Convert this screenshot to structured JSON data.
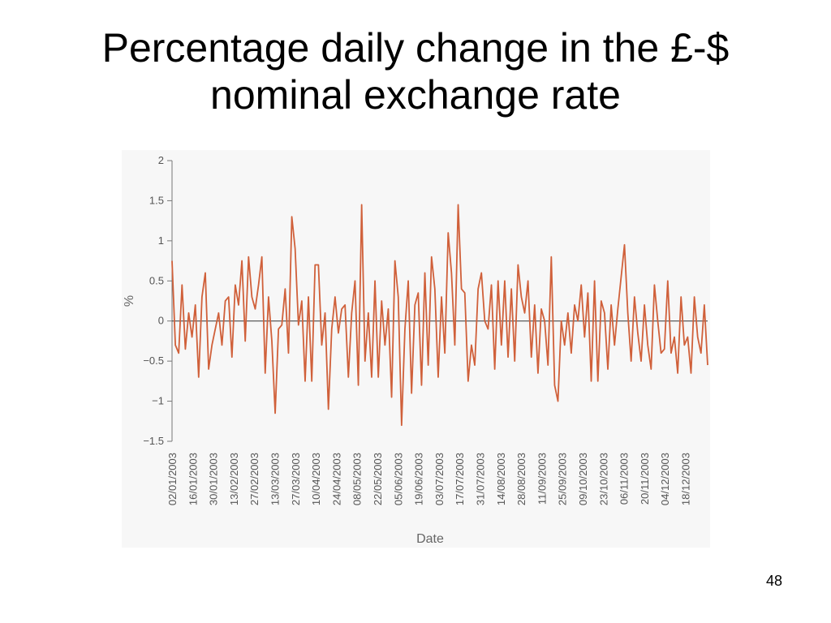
{
  "slide": {
    "title_line1": "Percentage daily change in the £-$",
    "title_line2": "nominal exchange rate",
    "page_number": "48"
  },
  "chart_data": {
    "type": "line",
    "title": "",
    "xlabel": "Date",
    "ylabel": "%",
    "ylim": [
      -1.5,
      2
    ],
    "yticks": [
      2,
      1.5,
      1,
      0.5,
      0,
      -0.5,
      -1,
      -1.5
    ],
    "ytick_labels": [
      "2",
      "1.5",
      "1",
      "0.5",
      "0",
      "−0.5",
      "−1",
      "−1.5"
    ],
    "xticks": [
      "02/01/2003",
      "16/01/2003",
      "30/01/2003",
      "13/02/2003",
      "27/02/2003",
      "13/03/2003",
      "27/03/2003",
      "10/04/2003",
      "24/04/2003",
      "08/05/2003",
      "22/05/2003",
      "05/06/2003",
      "19/06/2003",
      "03/07/2003",
      "17/07/2003",
      "31/07/2003",
      "14/08/2003",
      "28/08/2003",
      "11/09/2003",
      "25/09/2003",
      "09/10/2003",
      "23/10/2003",
      "06/11/2003",
      "20/11/2003",
      "04/12/2003",
      "18/12/2003"
    ],
    "grid": false,
    "zero_line": true,
    "line_color": "#d0603a",
    "series": [
      {
        "values": [
          0.75,
          -0.3,
          -0.4,
          0.45,
          -0.35,
          0.1,
          -0.2,
          0.2,
          -0.7,
          0.3,
          0.6,
          -0.6,
          -0.3,
          -0.1,
          0.1,
          -0.3,
          0.25,
          0.3,
          -0.45,
          0.45,
          0.2,
          0.75,
          -0.25,
          0.8,
          0.3,
          0.15,
          0.45,
          0.8,
          -0.65,
          0.3,
          -0.25,
          -1.15,
          -0.1,
          -0.05,
          0.4,
          -0.4,
          1.3,
          0.9,
          -0.05,
          0.25,
          -0.75,
          0.3,
          -0.75,
          0.7,
          0.7,
          -0.3,
          0.1,
          -1.1,
          -0.1,
          0.3,
          -0.15,
          0.15,
          0.2,
          -0.7,
          0.1,
          0.5,
          -0.8,
          1.45,
          -0.5,
          0.1,
          -0.7,
          0.5,
          -0.7,
          0.25,
          -0.3,
          0.15,
          -0.95,
          0.75,
          0.3,
          -1.3,
          -0.1,
          0.5,
          -0.9,
          0.2,
          0.35,
          -0.8,
          0.6,
          -0.55,
          0.8,
          0.4,
          -0.7,
          0.3,
          -0.4,
          1.1,
          0.6,
          -0.3,
          1.45,
          0.4,
          0.35,
          -0.75,
          -0.3,
          -0.55,
          0.4,
          0.6,
          0.0,
          -0.1,
          0.45,
          -0.6,
          0.5,
          -0.3,
          0.5,
          -0.45,
          0.4,
          -0.5,
          0.7,
          0.3,
          0.1,
          0.5,
          -0.45,
          0.2,
          -0.65,
          0.15,
          0.0,
          -0.55,
          0.8,
          -0.8,
          -1.0,
          0.0,
          -0.3,
          0.1,
          -0.4,
          0.2,
          0.0,
          0.45,
          -0.2,
          0.35,
          -0.75,
          0.5,
          -0.75,
          0.25,
          0.1,
          -0.6,
          0.2,
          -0.3,
          0.15,
          0.55,
          0.95,
          0.1,
          -0.5,
          0.3,
          -0.15,
          -0.5,
          0.2,
          -0.3,
          -0.6,
          0.45,
          0.0,
          -0.4,
          -0.35,
          0.5,
          -0.4,
          -0.2,
          -0.65,
          0.3,
          -0.3,
          -0.2,
          -0.65,
          0.3,
          -0.2,
          -0.4,
          0.2,
          -0.55
        ]
      }
    ]
  }
}
